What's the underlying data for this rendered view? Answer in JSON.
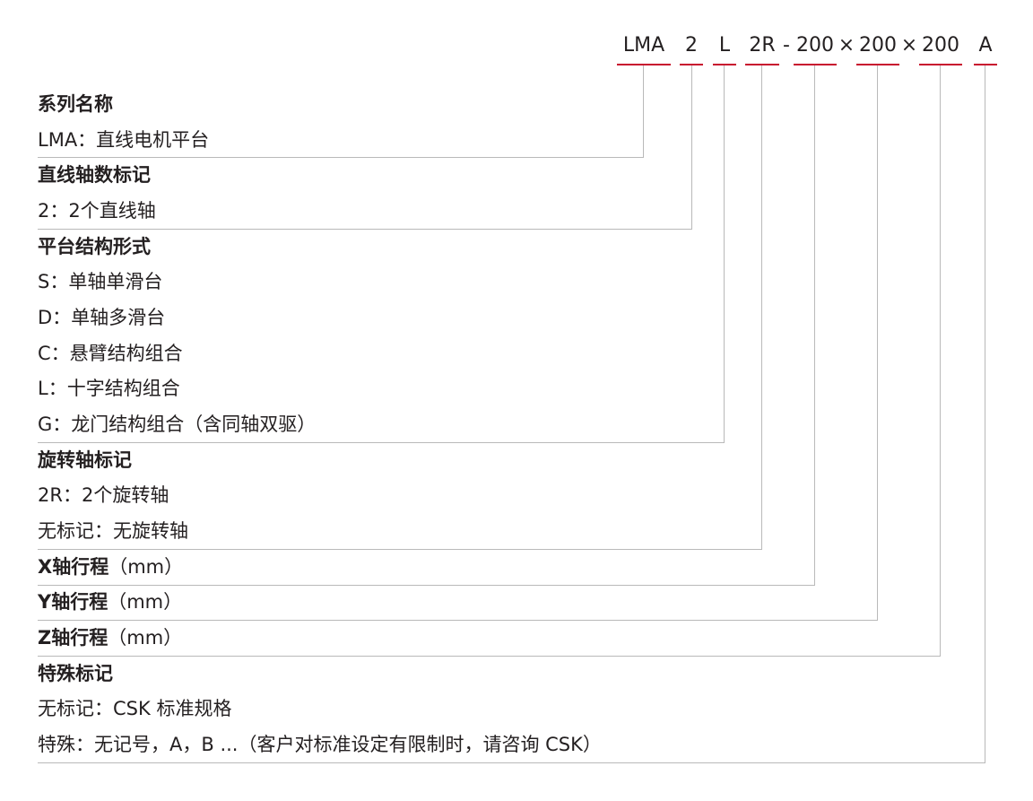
{
  "code": {
    "segments": [
      "LMA",
      "2",
      "L",
      "2R",
      "200",
      "200",
      "200",
      "A"
    ],
    "separators": [
      "-",
      "×",
      "×"
    ]
  },
  "sections": [
    {
      "heading": "系列名称",
      "items": [
        "LMA：直线电机平台"
      ]
    },
    {
      "heading": "直线轴数标记",
      "items": [
        "2：2个直线轴"
      ]
    },
    {
      "heading": "平台结构形式",
      "items": [
        "S：单轴单滑台",
        "D：单轴多滑台",
        "C：悬臂结构组合",
        "L：十字结构组合",
        "G：龙门结构组合（含同轴双驱）"
      ]
    },
    {
      "heading": "旋转轴标记",
      "items": [
        "2R：2个旋转轴",
        "无标记：无旋转轴"
      ]
    },
    {
      "heading": "X轴行程",
      "suffix": "（mm）",
      "items": []
    },
    {
      "heading": "Y轴行程",
      "suffix": "（mm）",
      "items": []
    },
    {
      "heading": "Z轴行程",
      "suffix": "（mm）",
      "items": []
    },
    {
      "heading": "特殊标记",
      "items": [
        "无标记：CSK 标准规格",
        "特殊：无记号，A，B ...（客户对标准设定有限制时，请咨询 CSK）"
      ]
    }
  ],
  "colors": {
    "accent": "#c8102e",
    "line": "#b9b9b9",
    "text": "#231f20"
  }
}
